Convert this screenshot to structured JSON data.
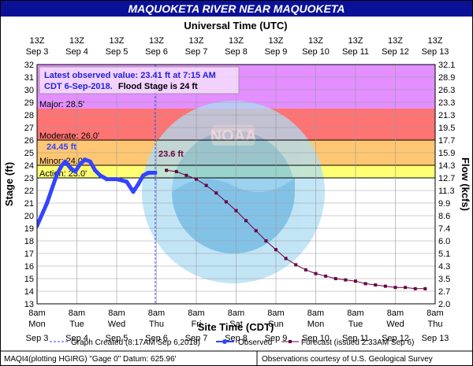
{
  "window": {
    "title": "MAQUOKETA RIVER NEAR MAQUOKETA"
  },
  "chart_data": {
    "type": "line",
    "title": "MAQUOKETA RIVER NEAR MAQUOKETA",
    "top_axis_label": "Universal Time (UTC)",
    "xlabel": "Site Time (CDT)",
    "ylabel": "Stage (ft)",
    "y2label": "Flow (kcfs)",
    "ylim": [
      13,
      32
    ],
    "y_ticks": [
      13,
      14,
      15,
      16,
      17,
      18,
      19,
      20,
      21,
      22,
      23,
      24,
      25,
      26,
      27,
      28,
      29,
      30,
      31,
      32
    ],
    "flow_ticks": [
      "2.0",
      "2.7",
      "3.5",
      "4.3",
      "5.1",
      "6.0",
      "7.4",
      "8.6",
      "9.9",
      "11.3",
      "12.7",
      "14.3",
      "15.9",
      "17.7",
      "19.5",
      "21.3",
      "23.3",
      "26.3",
      "28.9",
      "32.1"
    ],
    "x_range": [
      "2018-09-03 08:00",
      "2018-09-13 08:00"
    ],
    "top_ticks": [
      {
        "line1": "13Z",
        "line2": "Sep 3"
      },
      {
        "line1": "13Z",
        "line2": "Sep 4"
      },
      {
        "line1": "13Z",
        "line2": "Sep 5"
      },
      {
        "line1": "13Z",
        "line2": "Sep 6"
      },
      {
        "line1": "13Z",
        "line2": "Sep 7"
      },
      {
        "line1": "13Z",
        "line2": "Sep 8"
      },
      {
        "line1": "13Z",
        "line2": "Sep 9"
      },
      {
        "line1": "13Z",
        "line2": "Sep 10"
      },
      {
        "line1": "13Z",
        "line2": "Sep 11"
      },
      {
        "line1": "13Z",
        "line2": "Sep 12"
      },
      {
        "line1": "13Z",
        "line2": "Sep 13"
      }
    ],
    "bottom_ticks": [
      {
        "time": "8am",
        "day": "Mon",
        "date": "Sep 3"
      },
      {
        "time": "8am",
        "day": "Tue",
        "date": "Sep 4"
      },
      {
        "time": "8am",
        "day": "Wed",
        "date": "Sep 5"
      },
      {
        "time": "8am",
        "day": "Thu",
        "date": "Sep 6"
      },
      {
        "time": "8am",
        "day": "Fri",
        "date": "Sep 7"
      },
      {
        "time": "8am",
        "day": "Sat",
        "date": "Sep 8"
      },
      {
        "time": "8am",
        "day": "Sun",
        "date": "Sep 9"
      },
      {
        "time": "8am",
        "day": "Mon",
        "date": "Sep 10"
      },
      {
        "time": "8am",
        "day": "Tue",
        "date": "Sep 11"
      },
      {
        "time": "8am",
        "day": "Wed",
        "date": "Sep 12"
      },
      {
        "time": "8am",
        "day": "Thu",
        "date": "Sep 13"
      }
    ],
    "flood_categories": [
      {
        "name": "Action",
        "label": "Action: 23.0'",
        "from": 23.0,
        "to": 24.0,
        "color": "#ffff00"
      },
      {
        "name": "Minor",
        "label": "Minor: 24.0'",
        "from": 24.0,
        "to": 26.0,
        "color": "#ff9900"
      },
      {
        "name": "Moderate",
        "label": "Moderate: 26.0'",
        "from": 26.0,
        "to": 28.5,
        "color": "#ff0000"
      },
      {
        "name": "Major",
        "label": "Major: 28.5'",
        "from": 28.5,
        "to": 32.0,
        "color": "#cc33ff"
      }
    ],
    "series": [
      {
        "name": "Observed",
        "color": "#3344ff",
        "x": [
          "2018-09-03 08:00",
          "2018-09-03 14:00",
          "2018-09-03 20:00",
          "2018-09-03 23:00",
          "2018-09-04 01:00",
          "2018-09-04 04:00",
          "2018-09-04 07:00",
          "2018-09-04 10:00",
          "2018-09-04 13:00",
          "2018-09-04 16:00",
          "2018-09-04 19:00",
          "2018-09-04 22:00",
          "2018-09-05 02:00",
          "2018-09-05 08:00",
          "2018-09-05 14:00",
          "2018-09-05 18:00",
          "2018-09-05 21:00",
          "2018-09-06 00:00",
          "2018-09-06 03:00",
          "2018-09-06 07:15"
        ],
        "values": [
          19.2,
          21.0,
          23.3,
          24.0,
          24.3,
          23.8,
          23.5,
          24.1,
          24.45,
          24.3,
          23.6,
          23.2,
          22.9,
          22.9,
          22.7,
          21.9,
          22.5,
          23.2,
          23.4,
          23.41
        ]
      },
      {
        "name": "Forecast (issued 2:33AM Sep 6)",
        "color": "#660044",
        "x": [
          "2018-09-06 14:00",
          "2018-09-06 20:00",
          "2018-09-07 02:00",
          "2018-09-07 08:00",
          "2018-09-07 14:00",
          "2018-09-07 20:00",
          "2018-09-08 02:00",
          "2018-09-08 08:00",
          "2018-09-08 14:00",
          "2018-09-08 20:00",
          "2018-09-09 02:00",
          "2018-09-09 08:00",
          "2018-09-09 14:00",
          "2018-09-09 20:00",
          "2018-09-10 02:00",
          "2018-09-10 08:00",
          "2018-09-10 14:00",
          "2018-09-10 20:00",
          "2018-09-11 02:00",
          "2018-09-11 08:00",
          "2018-09-11 14:00",
          "2018-09-11 20:00",
          "2018-09-12 02:00",
          "2018-09-12 08:00",
          "2018-09-12 14:00",
          "2018-09-12 20:00",
          "2018-09-13 02:00"
        ],
        "values": [
          23.6,
          23.5,
          23.2,
          22.9,
          22.4,
          21.8,
          21.1,
          20.4,
          19.6,
          18.8,
          18.0,
          17.3,
          16.6,
          16.1,
          15.7,
          15.4,
          15.2,
          15.0,
          14.9,
          14.8,
          14.6,
          14.5,
          14.4,
          14.3,
          14.3,
          14.2,
          14.2
        ]
      }
    ],
    "annotations": {
      "latest_line1": "Latest observed value: 23.41  ft at 7:15 AM",
      "latest_line2a": "CDT 6-Sep-2018.",
      "latest_line2b": "Flood Stage is 24 ft",
      "peak_label": "24.45 ft",
      "forecast_start_label": "23.6 ft"
    },
    "legend": {
      "graph_created": "Graph Created (8:17AM Sep 6,2018)",
      "observed": "Observed",
      "forecast": "Forecast (issued 2:33AM Sep 6)"
    },
    "footer": {
      "left": "MAQI4(plotting HGIRG) \"Gage 0\" Datum:  625.96'",
      "right": "Observations courtesy of U.S. Geological Survey"
    },
    "colors": {
      "title_bg": "#0b1196",
      "observed": "#3344ff",
      "forecast": "#660044",
      "now_line": "#3344ff"
    }
  }
}
